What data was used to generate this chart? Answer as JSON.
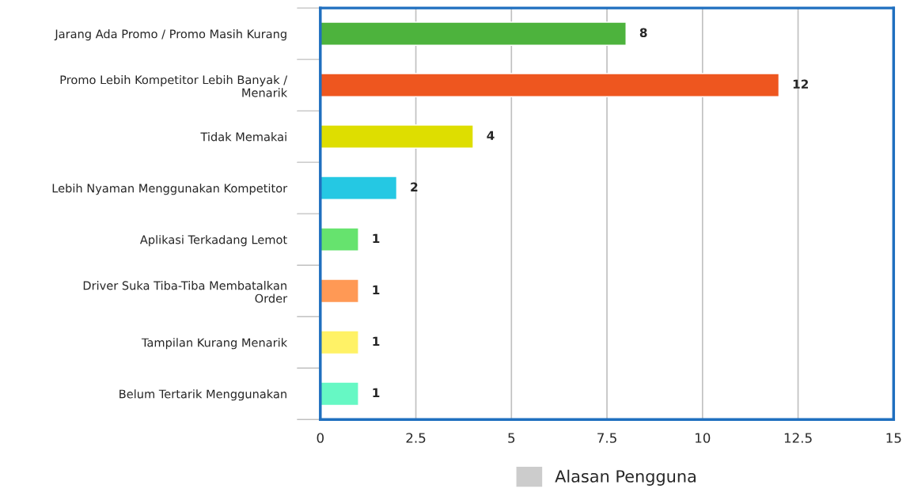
{
  "chart_data": {
    "type": "bar",
    "orientation": "horizontal",
    "categories": [
      "Jarang Ada Promo / Promo Masih Kurang",
      "Promo Lebih Kompetitor Lebih Banyak / Menarik",
      "Tidak Memakai",
      "Lebih Nyaman Menggunakan Kompetitor",
      "Aplikasi Terkadang Lemot",
      "Driver Suka Tiba-Tiba Membatalkan Order",
      "Tampilan Kurang Menarik",
      "Belum Tertarik Menggunakan"
    ],
    "series": [
      {
        "name": "Alasan Pengguna",
        "color": "#cccccc",
        "colors": [
          "#4db33d",
          "#ee561f",
          "#dede00",
          "#25c8e3",
          "#66e36e",
          "#ff9955",
          "#fff266",
          "#66f8c4"
        ],
        "values": [
          8,
          12,
          4,
          2,
          1,
          1,
          1,
          1
        ]
      }
    ],
    "xlim": [
      0,
      15
    ],
    "xticks": [
      0,
      2.5,
      5,
      7.5,
      10,
      12.5,
      15
    ],
    "grid": "x",
    "legend": "bottom",
    "data_labels": true
  }
}
